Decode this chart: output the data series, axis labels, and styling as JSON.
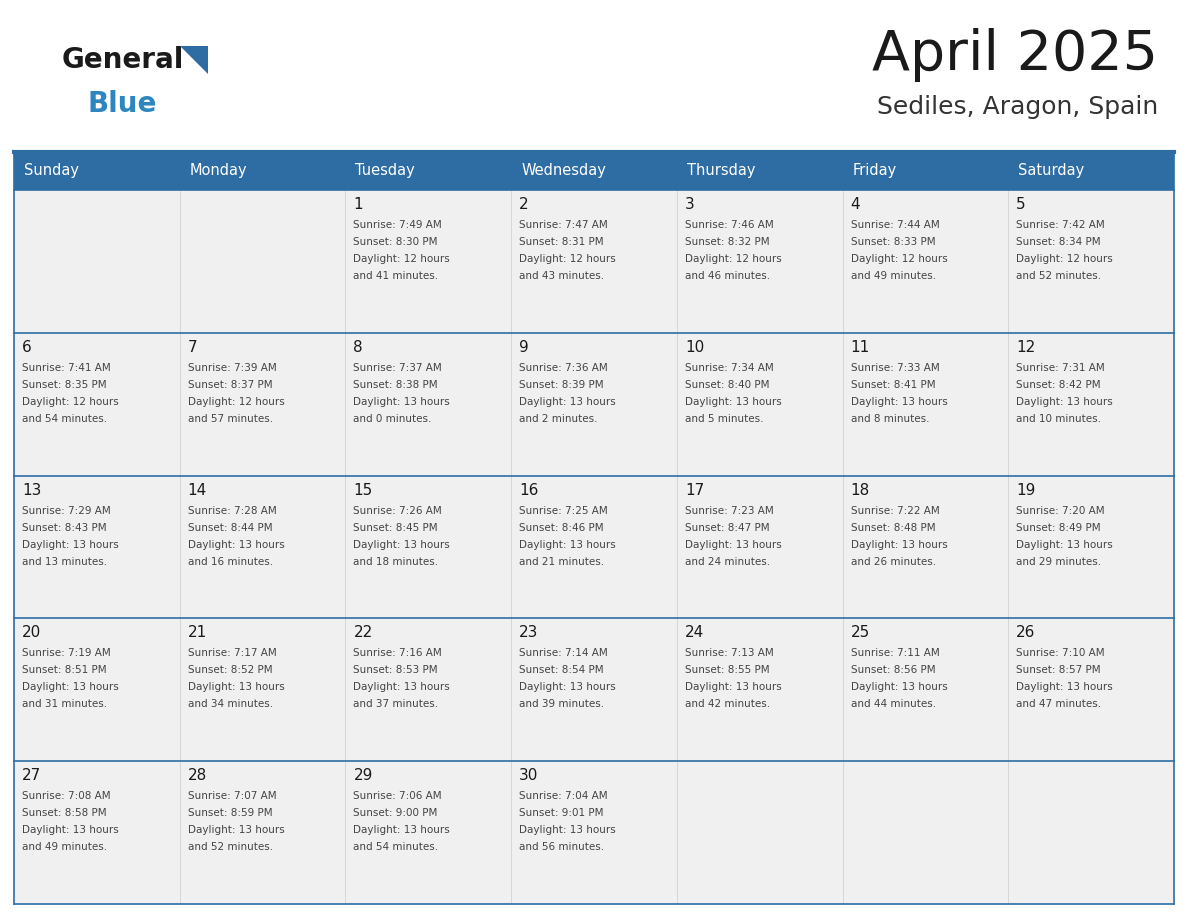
{
  "title": "April 2025",
  "subtitle": "Sediles, Aragon, Spain",
  "header_bg": "#2E6DA4",
  "header_text_color": "#FFFFFF",
  "cell_bg": "#F0F0F0",
  "border_color": "#2E6DA4",
  "days_of_week": [
    "Sunday",
    "Monday",
    "Tuesday",
    "Wednesday",
    "Thursday",
    "Friday",
    "Saturday"
  ],
  "title_color": "#1a1a1a",
  "subtitle_color": "#333333",
  "day_number_color": "#1a1a1a",
  "cell_text_color": "#444444",
  "logo_general_color": "#1a1a1a",
  "logo_blue_color": "#2E86C1",
  "logo_triangle_color": "#2E6DA4",
  "calendar": [
    [
      {
        "day": null,
        "text": ""
      },
      {
        "day": null,
        "text": ""
      },
      {
        "day": 1,
        "text": "Sunrise: 7:49 AM\nSunset: 8:30 PM\nDaylight: 12 hours\nand 41 minutes."
      },
      {
        "day": 2,
        "text": "Sunrise: 7:47 AM\nSunset: 8:31 PM\nDaylight: 12 hours\nand 43 minutes."
      },
      {
        "day": 3,
        "text": "Sunrise: 7:46 AM\nSunset: 8:32 PM\nDaylight: 12 hours\nand 46 minutes."
      },
      {
        "day": 4,
        "text": "Sunrise: 7:44 AM\nSunset: 8:33 PM\nDaylight: 12 hours\nand 49 minutes."
      },
      {
        "day": 5,
        "text": "Sunrise: 7:42 AM\nSunset: 8:34 PM\nDaylight: 12 hours\nand 52 minutes."
      }
    ],
    [
      {
        "day": 6,
        "text": "Sunrise: 7:41 AM\nSunset: 8:35 PM\nDaylight: 12 hours\nand 54 minutes."
      },
      {
        "day": 7,
        "text": "Sunrise: 7:39 AM\nSunset: 8:37 PM\nDaylight: 12 hours\nand 57 minutes."
      },
      {
        "day": 8,
        "text": "Sunrise: 7:37 AM\nSunset: 8:38 PM\nDaylight: 13 hours\nand 0 minutes."
      },
      {
        "day": 9,
        "text": "Sunrise: 7:36 AM\nSunset: 8:39 PM\nDaylight: 13 hours\nand 2 minutes."
      },
      {
        "day": 10,
        "text": "Sunrise: 7:34 AM\nSunset: 8:40 PM\nDaylight: 13 hours\nand 5 minutes."
      },
      {
        "day": 11,
        "text": "Sunrise: 7:33 AM\nSunset: 8:41 PM\nDaylight: 13 hours\nand 8 minutes."
      },
      {
        "day": 12,
        "text": "Sunrise: 7:31 AM\nSunset: 8:42 PM\nDaylight: 13 hours\nand 10 minutes."
      }
    ],
    [
      {
        "day": 13,
        "text": "Sunrise: 7:29 AM\nSunset: 8:43 PM\nDaylight: 13 hours\nand 13 minutes."
      },
      {
        "day": 14,
        "text": "Sunrise: 7:28 AM\nSunset: 8:44 PM\nDaylight: 13 hours\nand 16 minutes."
      },
      {
        "day": 15,
        "text": "Sunrise: 7:26 AM\nSunset: 8:45 PM\nDaylight: 13 hours\nand 18 minutes."
      },
      {
        "day": 16,
        "text": "Sunrise: 7:25 AM\nSunset: 8:46 PM\nDaylight: 13 hours\nand 21 minutes."
      },
      {
        "day": 17,
        "text": "Sunrise: 7:23 AM\nSunset: 8:47 PM\nDaylight: 13 hours\nand 24 minutes."
      },
      {
        "day": 18,
        "text": "Sunrise: 7:22 AM\nSunset: 8:48 PM\nDaylight: 13 hours\nand 26 minutes."
      },
      {
        "day": 19,
        "text": "Sunrise: 7:20 AM\nSunset: 8:49 PM\nDaylight: 13 hours\nand 29 minutes."
      }
    ],
    [
      {
        "day": 20,
        "text": "Sunrise: 7:19 AM\nSunset: 8:51 PM\nDaylight: 13 hours\nand 31 minutes."
      },
      {
        "day": 21,
        "text": "Sunrise: 7:17 AM\nSunset: 8:52 PM\nDaylight: 13 hours\nand 34 minutes."
      },
      {
        "day": 22,
        "text": "Sunrise: 7:16 AM\nSunset: 8:53 PM\nDaylight: 13 hours\nand 37 minutes."
      },
      {
        "day": 23,
        "text": "Sunrise: 7:14 AM\nSunset: 8:54 PM\nDaylight: 13 hours\nand 39 minutes."
      },
      {
        "day": 24,
        "text": "Sunrise: 7:13 AM\nSunset: 8:55 PM\nDaylight: 13 hours\nand 42 minutes."
      },
      {
        "day": 25,
        "text": "Sunrise: 7:11 AM\nSunset: 8:56 PM\nDaylight: 13 hours\nand 44 minutes."
      },
      {
        "day": 26,
        "text": "Sunrise: 7:10 AM\nSunset: 8:57 PM\nDaylight: 13 hours\nand 47 minutes."
      }
    ],
    [
      {
        "day": 27,
        "text": "Sunrise: 7:08 AM\nSunset: 8:58 PM\nDaylight: 13 hours\nand 49 minutes."
      },
      {
        "day": 28,
        "text": "Sunrise: 7:07 AM\nSunset: 8:59 PM\nDaylight: 13 hours\nand 52 minutes."
      },
      {
        "day": 29,
        "text": "Sunrise: 7:06 AM\nSunset: 9:00 PM\nDaylight: 13 hours\nand 54 minutes."
      },
      {
        "day": 30,
        "text": "Sunrise: 7:04 AM\nSunset: 9:01 PM\nDaylight: 13 hours\nand 56 minutes."
      },
      {
        "day": null,
        "text": ""
      },
      {
        "day": null,
        "text": ""
      },
      {
        "day": null,
        "text": ""
      }
    ]
  ]
}
